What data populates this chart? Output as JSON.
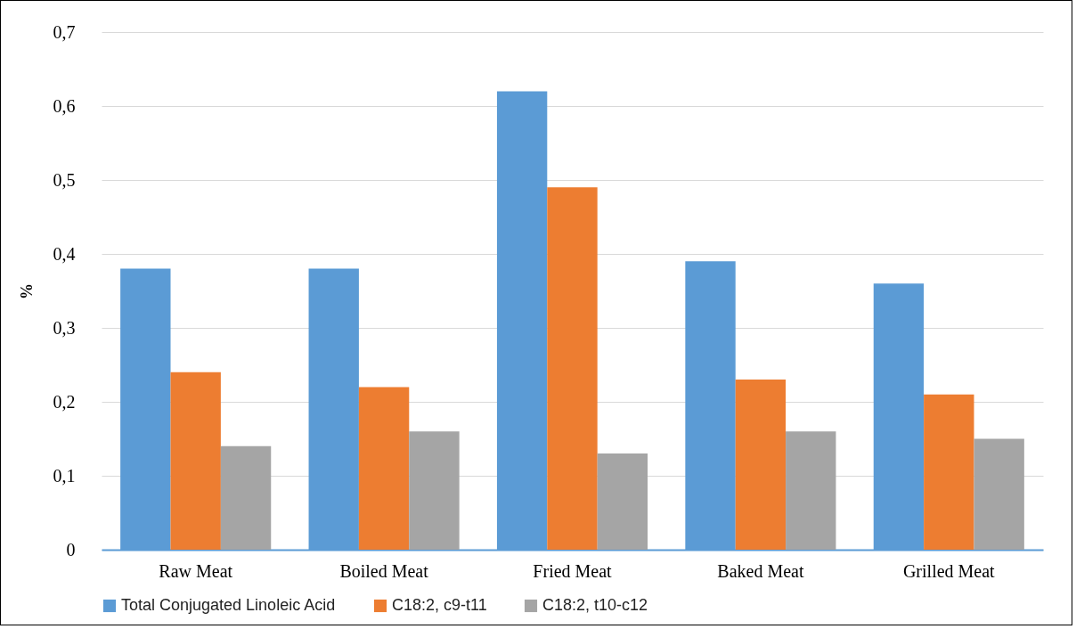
{
  "chart_data": {
    "type": "bar",
    "ylabel": "%",
    "categories": [
      "Raw Meat",
      "Boiled Meat",
      "Fried Meat",
      "Baked Meat",
      "Grilled Meat"
    ],
    "series": [
      {
        "name": "Total Conjugated Linoleic Acid",
        "color": "#5b9bd5",
        "values": [
          0.38,
          0.38,
          0.62,
          0.39,
          0.36
        ]
      },
      {
        "name": "C18:2, c9-t11",
        "color": "#ed7d31",
        "values": [
          0.24,
          0.22,
          0.49,
          0.23,
          0.21
        ]
      },
      {
        "name": "C18:2, t10-c12",
        "color": "#a5a5a5",
        "values": [
          0.14,
          0.16,
          0.13,
          0.16,
          0.15
        ]
      }
    ],
    "ylim": [
      0,
      0.7
    ],
    "yticks": [
      {
        "value": 0,
        "label": "0"
      },
      {
        "value": 0.1,
        "label": "0,1"
      },
      {
        "value": 0.2,
        "label": "0,2"
      },
      {
        "value": 0.3,
        "label": "0,3"
      },
      {
        "value": 0.4,
        "label": "0,4"
      },
      {
        "value": 0.5,
        "label": "0,5"
      },
      {
        "value": 0.6,
        "label": "0,6"
      },
      {
        "value": 0.7,
        "label": "0,7"
      }
    ],
    "grid": "y",
    "legend": "bottom"
  }
}
